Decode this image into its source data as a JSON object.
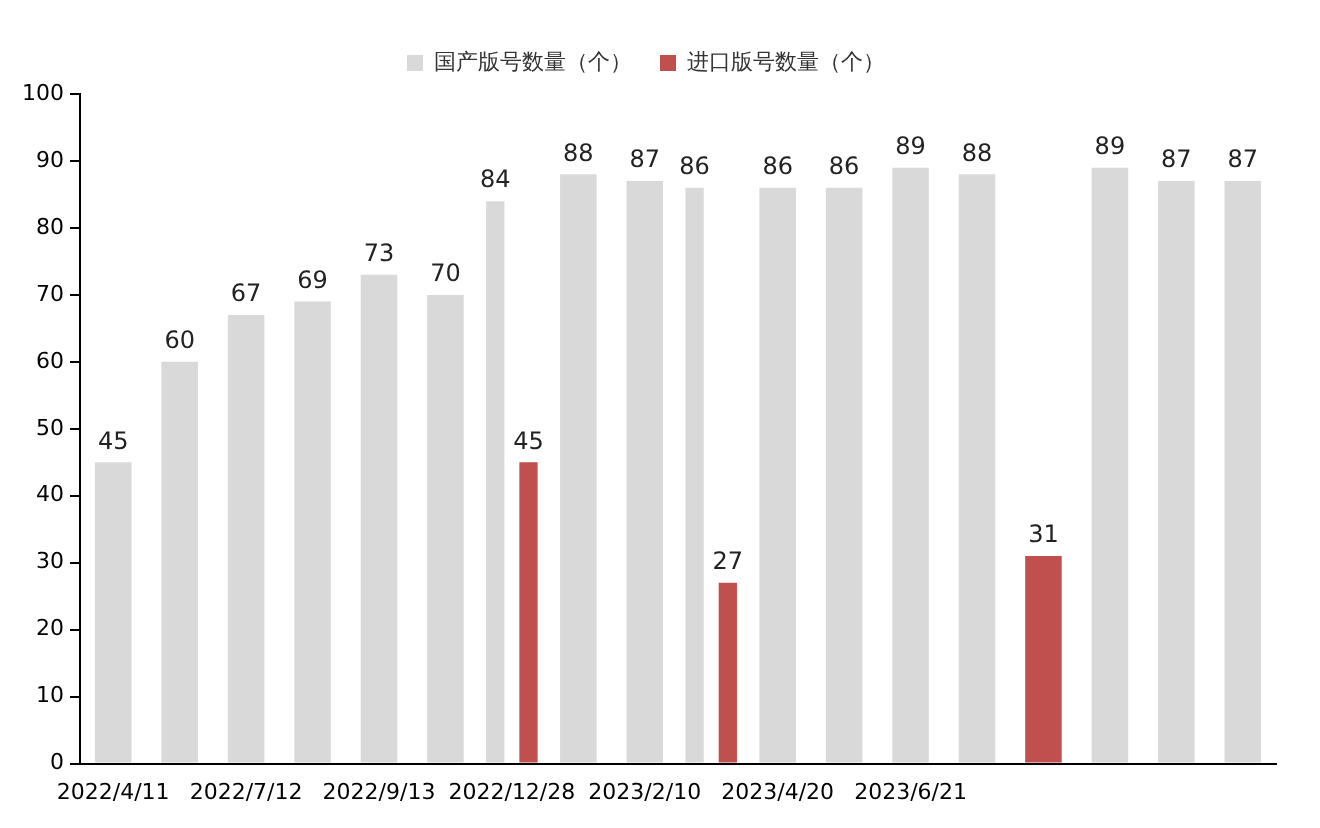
{
  "chart_data": {
    "type": "bar",
    "categories": [
      "2022/4/11",
      null,
      "2022/7/12",
      null,
      "2022/9/13",
      null,
      "2022/12/28",
      null,
      "2023/2/10",
      null,
      "2023/4/20",
      null,
      "2023/6/21",
      null,
      null,
      null,
      null,
      null
    ],
    "series": [
      {
        "name": "国产版号数量（个）",
        "color": "#d9d9d9",
        "values": [
          45,
          60,
          67,
          69,
          73,
          70,
          84,
          88,
          87,
          86,
          86,
          86,
          89,
          88,
          null,
          89,
          87,
          87
        ]
      },
      {
        "name": "进口版号数量（个）",
        "color": "#c0504d",
        "values": [
          null,
          null,
          null,
          null,
          null,
          null,
          45,
          null,
          null,
          27,
          null,
          null,
          null,
          null,
          31,
          null,
          null,
          null
        ]
      }
    ],
    "ylim": [
      0,
      100
    ],
    "yticks": [
      0,
      10,
      20,
      30,
      40,
      50,
      60,
      70,
      80,
      90,
      100
    ],
    "grid": false,
    "legend": "top",
    "data_labels": true
  }
}
